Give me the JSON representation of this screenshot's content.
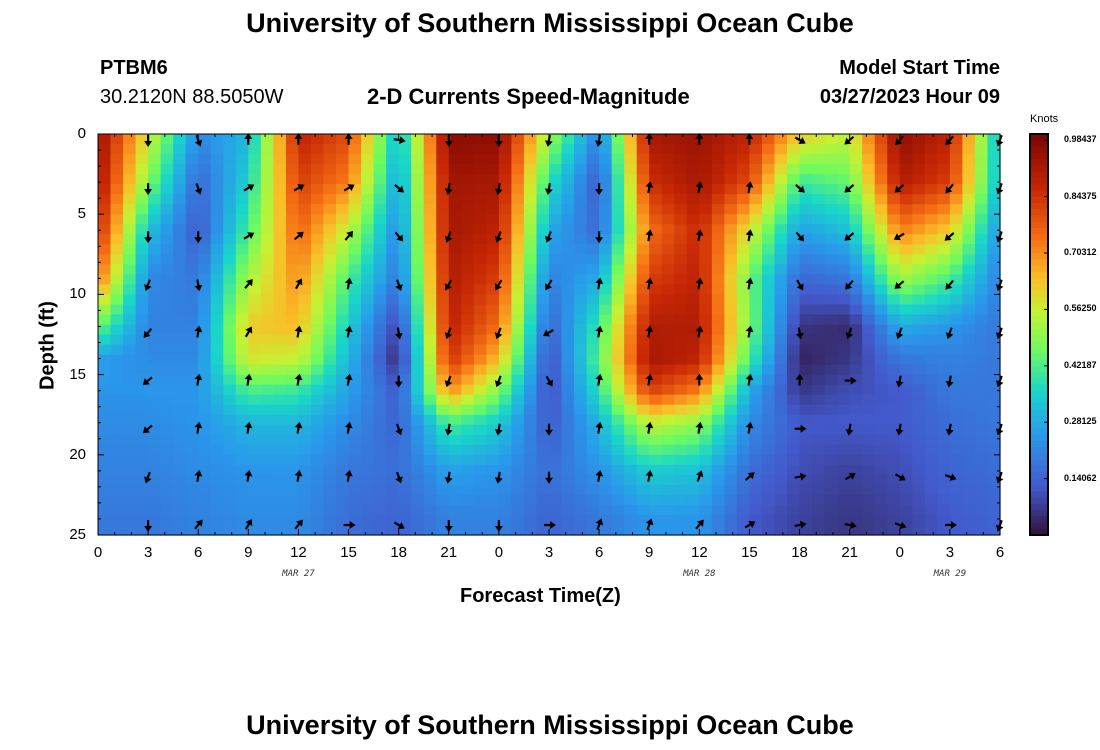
{
  "header": {
    "title": "University of Southern Mississippi Ocean Cube",
    "station": "PTBM6",
    "coords": "30.2120N  88.5050W",
    "subtitle": "2-D Currents Speed-Magnitude",
    "model_start_label": "Model Start Time",
    "model_start_value": "03/27/2023 Hour 09"
  },
  "footer": {
    "title": "University of Southern Mississippi Ocean Cube"
  },
  "chart_data": {
    "type": "heatmap",
    "title": "2-D Currents Speed-Magnitude",
    "xlabel": "Forecast Time(Z)",
    "ylabel": "Depth (ft)",
    "x_tick_labels": [
      "0",
      "3",
      "6",
      "9",
      "12",
      "15",
      "18",
      "21",
      "0",
      "3",
      "6",
      "9",
      "12",
      "15",
      "18",
      "21",
      "0",
      "3",
      "6"
    ],
    "x_hours": [
      0,
      3,
      6,
      9,
      12,
      15,
      18,
      21,
      24,
      27,
      30,
      33,
      36,
      39,
      42,
      45,
      48,
      51,
      54
    ],
    "xlim_hours": [
      0,
      54
    ],
    "date_labels": [
      {
        "label": "MAR 27",
        "hour": 12
      },
      {
        "label": "MAR 28",
        "hour": 36
      },
      {
        "label": "MAR 29",
        "hour": 51
      }
    ],
    "y_tick_labels": [
      "0",
      "5",
      "10",
      "15",
      "20",
      "25"
    ],
    "y_ticks": [
      0,
      5,
      10,
      15,
      20,
      25
    ],
    "ylim": [
      0,
      25
    ],
    "y_inverted": true,
    "colorbar": {
      "unit": "Knots",
      "tick_labels": [
        "0.98437",
        "0.84375",
        "0.70312",
        "0.56250",
        "0.42187",
        "0.28125",
        "0.14062"
      ],
      "tick_values": [
        0.98437,
        0.84375,
        0.70312,
        0.5625,
        0.42187,
        0.28125,
        0.14062
      ],
      "range": [
        0,
        1.0
      ]
    },
    "speed_knots_by_depth": {
      "columns_hours": [
        0,
        3,
        6,
        9,
        12,
        15,
        18,
        21,
        24,
        27,
        30,
        33,
        36,
        39,
        42,
        45,
        48,
        51,
        54
      ],
      "rows_depth_ft": [
        0,
        3,
        6,
        9,
        12,
        14,
        16,
        18,
        21,
        24
      ],
      "values": [
        [
          0.95,
          0.58,
          0.22,
          0.3,
          0.88,
          0.8,
          0.3,
          0.97,
          0.96,
          0.52,
          0.2,
          0.92,
          0.94,
          0.88,
          0.62,
          0.55,
          0.96,
          0.88,
          0.3
        ],
        [
          0.92,
          0.48,
          0.15,
          0.35,
          0.82,
          0.72,
          0.26,
          0.93,
          0.92,
          0.38,
          0.12,
          0.85,
          0.92,
          0.8,
          0.4,
          0.45,
          0.9,
          0.82,
          0.3
        ],
        [
          0.86,
          0.32,
          0.12,
          0.42,
          0.76,
          0.55,
          0.22,
          0.92,
          0.88,
          0.28,
          0.15,
          0.74,
          0.86,
          0.58,
          0.26,
          0.32,
          0.72,
          0.62,
          0.24
        ],
        [
          0.74,
          0.22,
          0.18,
          0.52,
          0.7,
          0.42,
          0.18,
          0.9,
          0.82,
          0.2,
          0.28,
          0.82,
          0.88,
          0.46,
          0.15,
          0.18,
          0.52,
          0.42,
          0.2
        ],
        [
          0.45,
          0.2,
          0.2,
          0.62,
          0.64,
          0.34,
          0.08,
          0.88,
          0.74,
          0.14,
          0.4,
          0.9,
          0.9,
          0.48,
          0.06,
          0.04,
          0.28,
          0.24,
          0.18
        ],
        [
          0.26,
          0.22,
          0.22,
          0.58,
          0.56,
          0.3,
          0.04,
          0.84,
          0.64,
          0.1,
          0.44,
          0.92,
          0.88,
          0.42,
          0.03,
          0.06,
          0.18,
          0.2,
          0.18
        ],
        [
          0.24,
          0.24,
          0.24,
          0.42,
          0.4,
          0.26,
          0.12,
          0.7,
          0.48,
          0.1,
          0.38,
          0.82,
          0.72,
          0.28,
          0.06,
          0.1,
          0.12,
          0.18,
          0.18
        ],
        [
          0.22,
          0.22,
          0.24,
          0.3,
          0.3,
          0.22,
          0.14,
          0.42,
          0.34,
          0.12,
          0.3,
          0.56,
          0.5,
          0.22,
          0.12,
          0.12,
          0.12,
          0.16,
          0.18
        ],
        [
          0.2,
          0.2,
          0.22,
          0.24,
          0.24,
          0.18,
          0.16,
          0.26,
          0.24,
          0.16,
          0.24,
          0.34,
          0.32,
          0.16,
          0.1,
          0.08,
          0.1,
          0.14,
          0.16
        ],
        [
          0.18,
          0.18,
          0.2,
          0.22,
          0.22,
          0.16,
          0.14,
          0.2,
          0.2,
          0.14,
          0.18,
          0.24,
          0.24,
          0.12,
          0.08,
          0.06,
          0.08,
          0.12,
          0.14
        ]
      ]
    },
    "current_direction_deg_by_depth": {
      "columns_hours": [
        3,
        6,
        9,
        12,
        15,
        18,
        21,
        24,
        27,
        30,
        33,
        36,
        39,
        42,
        45,
        48,
        51,
        54
      ],
      "rows_depth_ft": [
        0,
        3,
        6,
        9,
        12,
        15,
        18,
        21,
        24
      ],
      "values": [
        [
          180,
          160,
          0,
          0,
          0,
          100,
          180,
          180,
          190,
          190,
          0,
          0,
          0,
          120,
          230,
          220,
          220,
          200
        ],
        [
          180,
          160,
          60,
          60,
          60,
          130,
          190,
          190,
          190,
          180,
          10,
          10,
          10,
          130,
          230,
          230,
          220,
          200
        ],
        [
          180,
          180,
          60,
          50,
          40,
          140,
          200,
          200,
          200,
          180,
          10,
          10,
          10,
          140,
          230,
          240,
          230,
          200
        ],
        [
          200,
          170,
          40,
          30,
          10,
          160,
          210,
          210,
          210,
          10,
          10,
          10,
          10,
          150,
          220,
          230,
          220,
          200
        ],
        [
          220,
          10,
          30,
          10,
          10,
          170,
          200,
          200,
          240,
          10,
          10,
          10,
          10,
          170,
          200,
          200,
          200,
          200
        ],
        [
          230,
          10,
          10,
          10,
          10,
          180,
          200,
          200,
          150,
          10,
          10,
          0,
          10,
          0,
          90,
          190,
          190,
          200
        ],
        [
          230,
          10,
          10,
          10,
          10,
          160,
          190,
          190,
          180,
          10,
          10,
          10,
          10,
          90,
          190,
          190,
          190,
          200
        ],
        [
          200,
          10,
          10,
          10,
          10,
          160,
          190,
          190,
          180,
          10,
          10,
          20,
          50,
          80,
          60,
          120,
          110,
          200
        ],
        [
          180,
          40,
          30,
          40,
          90,
          120,
          180,
          180,
          90,
          20,
          20,
          40,
          60,
          80,
          100,
          110,
          90,
          200
        ]
      ]
    }
  }
}
